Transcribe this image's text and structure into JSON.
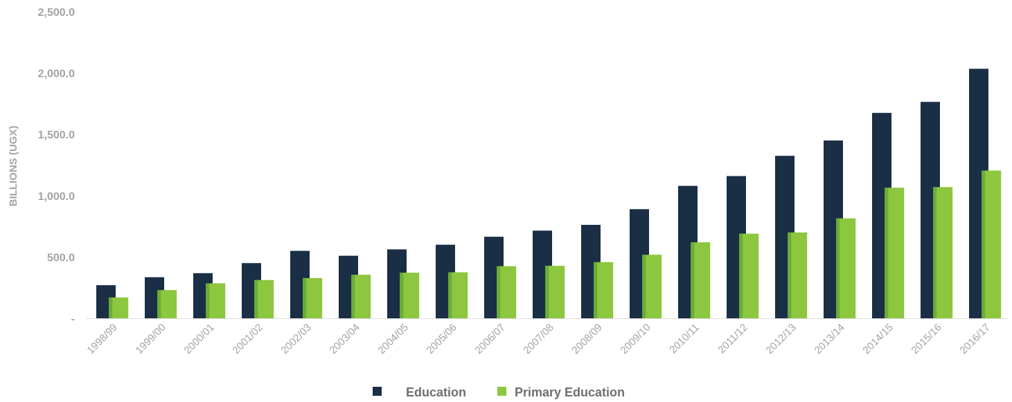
{
  "chart_data": {
    "type": "bar",
    "ylabel": "BILLIONS (UGX)",
    "xlabel": "",
    "ylim": [
      0,
      2500
    ],
    "yticks": [
      0,
      500,
      1000,
      1500,
      2000,
      2500
    ],
    "ytick_labels": [
      "-",
      "500.0",
      "1,000.0",
      "1,500.0",
      "2,000.0",
      "2,500.0"
    ],
    "categories": [
      "1998/99",
      "1999/00",
      "2000/01",
      "2001/02",
      "2002/03",
      "2003/04",
      "2004/05",
      "2005/06",
      "2006/07",
      "2007/08",
      "2008/09",
      "2009/10",
      "2010/11",
      "2011/12",
      "2012/13",
      "2013/14",
      "2014/15",
      "2015/16",
      "2016/17"
    ],
    "series": [
      {
        "name": "Education",
        "color": "#1a2e45",
        "values": [
          270,
          335,
          368,
          450,
          550,
          510,
          562,
          600,
          665,
          715,
          762,
          890,
          1080,
          1160,
          1325,
          1450,
          1675,
          1765,
          2035
        ]
      },
      {
        "name": "Primary Education",
        "color": "#8dc63f",
        "values": [
          170,
          230,
          285,
          312,
          328,
          355,
          372,
          375,
          425,
          428,
          458,
          518,
          620,
          690,
          700,
          815,
          1065,
          1070,
          1205
        ]
      }
    ],
    "grid": false,
    "legend_position": "bottom-center"
  }
}
